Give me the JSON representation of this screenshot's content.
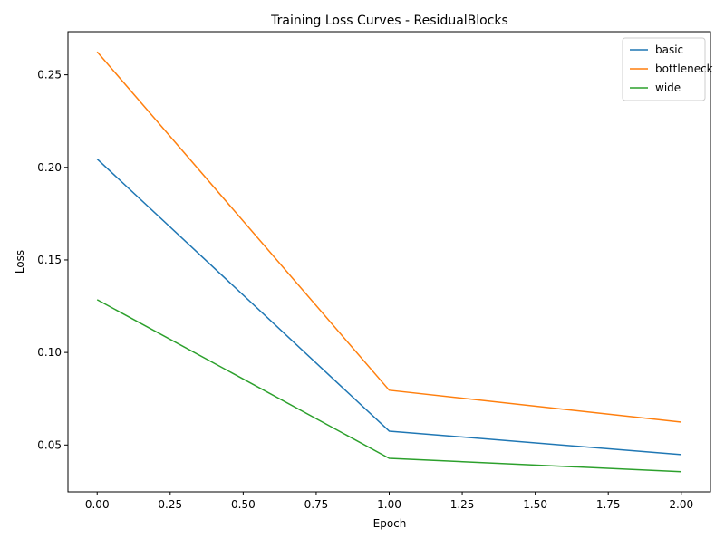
{
  "chart_data": {
    "type": "line",
    "title": "Training Loss Curves - ResidualBlocks",
    "xlabel": "Epoch",
    "ylabel": "Loss",
    "xlim": [
      -0.1,
      2.1
    ],
    "ylim": [
      0.0247,
      0.2733
    ],
    "x_ticks": [
      0.0,
      0.25,
      0.5,
      0.75,
      1.0,
      1.25,
      1.5,
      1.75,
      2.0
    ],
    "x_tick_labels": [
      "0.00",
      "0.25",
      "0.50",
      "0.75",
      "1.00",
      "1.25",
      "1.50",
      "1.75",
      "2.00"
    ],
    "y_ticks": [
      0.05,
      0.1,
      0.15,
      0.2,
      0.25
    ],
    "y_tick_labels": [
      "0.05",
      "0.10",
      "0.15",
      "0.20",
      "0.25"
    ],
    "grid": false,
    "legend_position": "top-right",
    "x": [
      0,
      1,
      2
    ],
    "series": [
      {
        "name": "basic",
        "color": "#1f77b4",
        "values": [
          0.2045,
          0.0575,
          0.0448
        ]
      },
      {
        "name": "bottleneck",
        "color": "#ff7f0e",
        "values": [
          0.2624,
          0.0796,
          0.0624
        ]
      },
      {
        "name": "wide",
        "color": "#2ca02c",
        "values": [
          0.1285,
          0.0428,
          0.0356
        ]
      }
    ]
  }
}
